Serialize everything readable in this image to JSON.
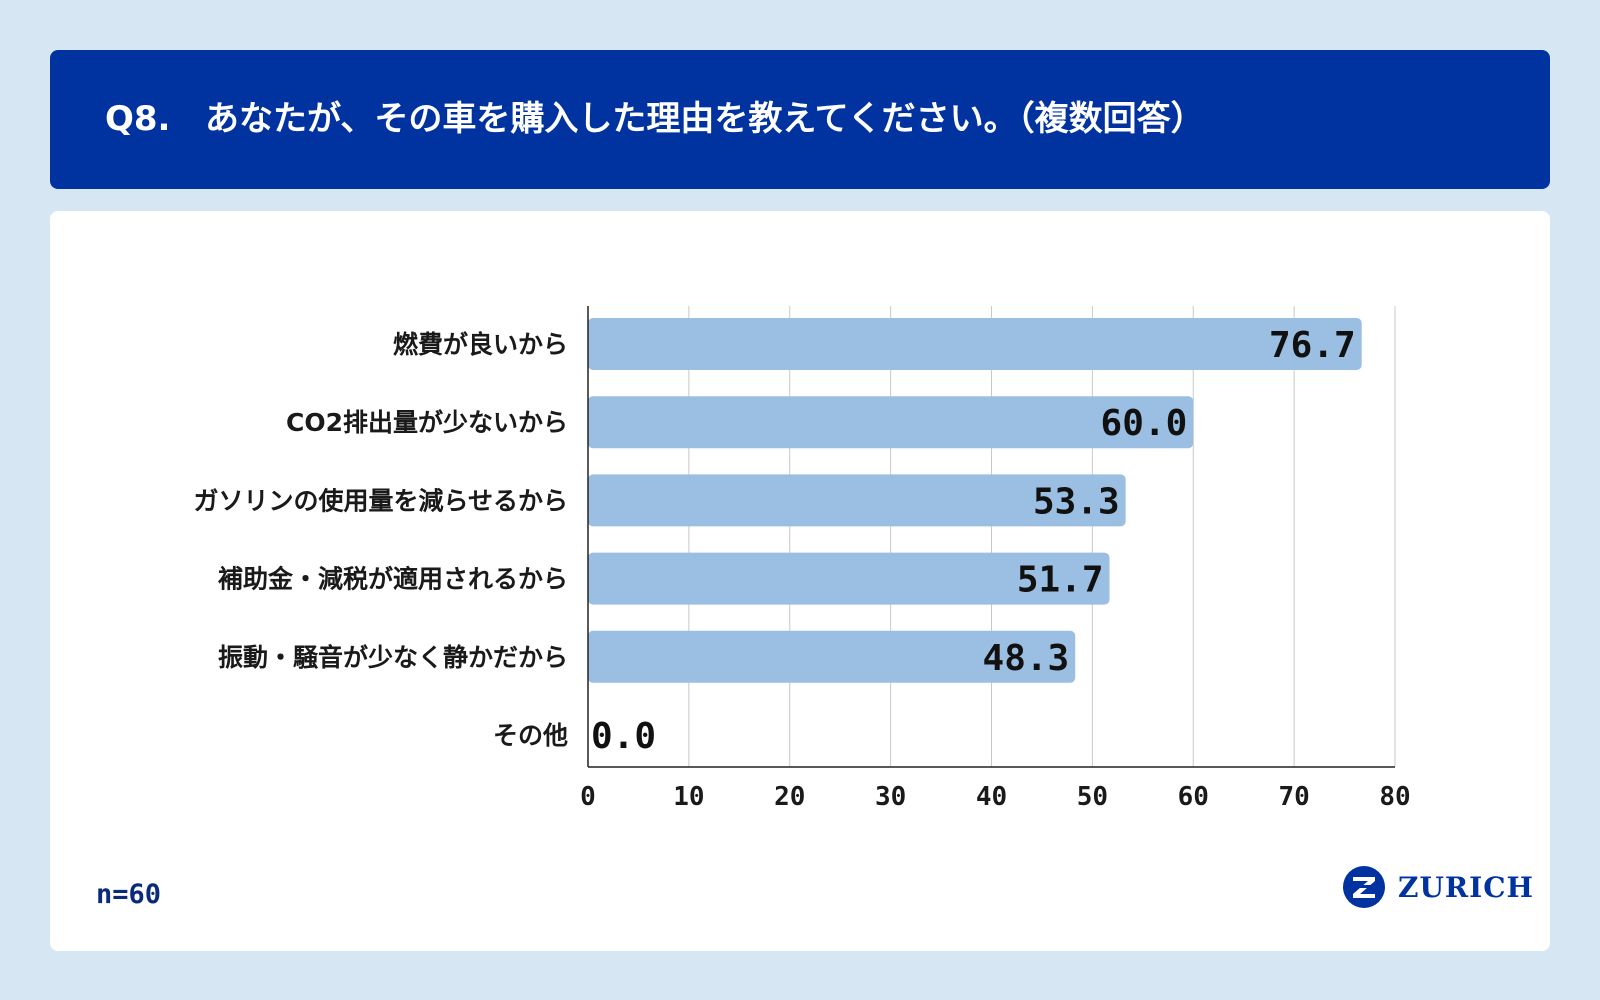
{
  "header": {
    "qnum": "Q8.",
    "question": "あなたが、その車を購入した理由を教えてください。（複数回答）"
  },
  "footer": {
    "n_label": "n=60",
    "brand": "ZURICH"
  },
  "colors": {
    "header_bg": "#0033a0",
    "page_bg": "#d6e6f3",
    "bar": "#9bbfe2",
    "grid": "#c8c8c8"
  },
  "chart_data": {
    "type": "bar",
    "orientation": "horizontal",
    "categories": [
      "燃費が良いから",
      "CO2排出量が少ないから",
      "ガソリンの使用量を減らせるから",
      "補助金・減税が適用されるから",
      "振動・騒音が少なく静かだから",
      "その他"
    ],
    "values": [
      76.7,
      60.0,
      53.3,
      51.7,
      48.3,
      0.0
    ],
    "value_labels": [
      "76.7",
      "60.0",
      "53.3",
      "51.7",
      "48.3",
      "0.0"
    ],
    "xlim": [
      0,
      80
    ],
    "xticks": [
      "0",
      "10",
      "20",
      "30",
      "40",
      "50",
      "60",
      "70",
      "80"
    ],
    "grid": true
  }
}
